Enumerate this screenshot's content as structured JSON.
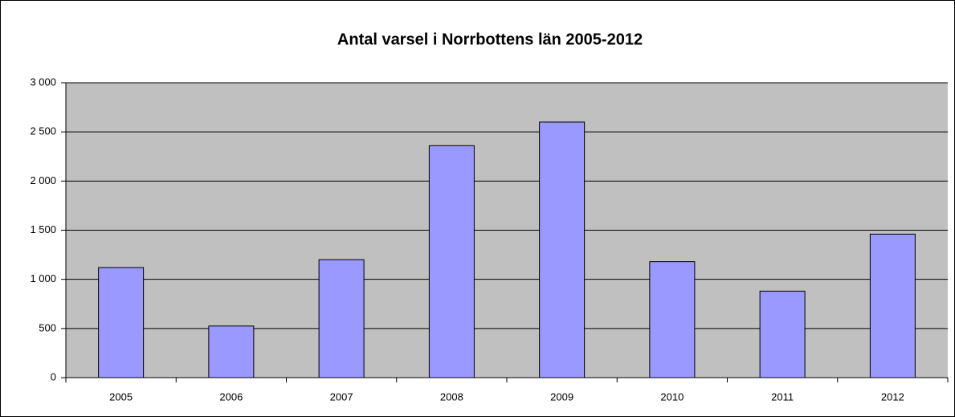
{
  "chart_data": {
    "type": "bar",
    "title": "Antal varsel i Norrbottens län 2005-2012",
    "categories": [
      "2005",
      "2006",
      "2007",
      "2008",
      "2009",
      "2010",
      "2011",
      "2012"
    ],
    "values": [
      1120,
      525,
      1200,
      2360,
      2600,
      1180,
      880,
      1460
    ],
    "color": "#9999ff",
    "ylim": [
      0,
      3000
    ],
    "yticks": [
      0,
      500,
      {
        "value": 1000,
        "label": "1 000"
      },
      {
        "value": 1500,
        "label": "1 500"
      },
      {
        "value": 2000,
        "label": "2 000"
      },
      {
        "value": 2500,
        "label": "2 500"
      },
      {
        "value": 3000,
        "label": "3 000"
      }
    ],
    "grid": true
  }
}
